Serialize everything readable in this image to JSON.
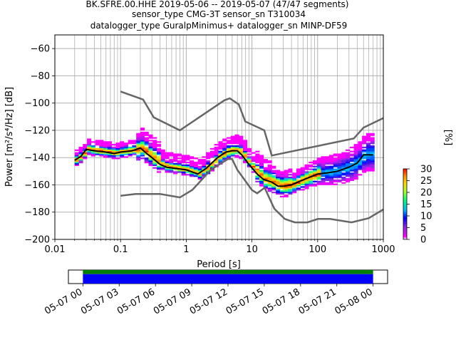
{
  "title": {
    "line1": "BK.SFRE.00.HHE   2019-05-06 -- 2019-05-07  (47/47 segments)",
    "line2": "sensor_type CMG-3T sensor_sn T310034",
    "line3": "datalogger_type GuralpMinimus+ datalogger_sn MINP-DF59"
  },
  "chart_data": [
    {
      "type": "heatmap",
      "description_kind": "probabilistic power spectral density",
      "xlabel": "Period [s]",
      "ylabel": "Power [m²/s⁴/Hz] [dB]",
      "x_scale": "log",
      "xlim": [
        0.01,
        1000
      ],
      "ylim": [
        -200,
        -50
      ],
      "x_ticks": [
        {
          "value": 0.01,
          "label": "0.01"
        },
        {
          "value": 0.1,
          "label": "0.1"
        },
        {
          "value": 1,
          "label": "1"
        },
        {
          "value": 10,
          "label": "10"
        },
        {
          "value": 100,
          "label": "100"
        },
        {
          "value": 1000,
          "label": "1000"
        }
      ],
      "y_ticks": [
        -200,
        -180,
        -160,
        -140,
        -120,
        -100,
        -80,
        -60
      ],
      "grid": true,
      "colorbar": {
        "label": "[%]",
        "min": 0,
        "max": 30,
        "ticks": [
          0,
          5,
          10,
          15,
          20,
          25,
          30
        ]
      },
      "mode_curve": {
        "name": "mode",
        "color": "#000000",
        "x": [
          0.02,
          0.025,
          0.03,
          0.04,
          0.06,
          0.08,
          0.1,
          0.15,
          0.2,
          0.25,
          0.3,
          0.4,
          0.5,
          0.7,
          1.0,
          1.5,
          2,
          3,
          4,
          5,
          6,
          7,
          9,
          12,
          15,
          20,
          25,
          30,
          40,
          50,
          70,
          100,
          150,
          200,
          300,
          400,
          500,
          700
        ],
        "y": [
          -142,
          -139,
          -134,
          -135,
          -136,
          -137,
          -136,
          -135,
          -133,
          -137,
          -140,
          -145,
          -147,
          -148,
          -149,
          -152,
          -148,
          -140,
          -136,
          -135,
          -135,
          -138,
          -145,
          -152,
          -156,
          -158,
          -161,
          -161,
          -160,
          -158,
          -155,
          -152,
          -151,
          -150,
          -147,
          -144,
          -138,
          -138
        ]
      },
      "noise_models": [
        {
          "name": "NHNM",
          "color": "#666666",
          "x": [
            0.1,
            0.22,
            0.32,
            0.8,
            3.8,
            4.6,
            6.3,
            7.9,
            15.4,
            20,
            354.8,
            500,
            1000
          ],
          "y": [
            -91.5,
            -97.4,
            -110.5,
            -120,
            -98,
            -96.5,
            -101,
            -113.5,
            -120,
            -138.5,
            -126,
            -118,
            -111
          ]
        },
        {
          "name": "NLNM",
          "color": "#666666",
          "x": [
            0.1,
            0.17,
            0.4,
            0.8,
            1.24,
            2.4,
            4.3,
            5,
            6,
            10,
            12,
            15.6,
            21.9,
            31.6,
            45,
            70,
            101,
            154,
            328,
            600,
            1000
          ],
          "y": [
            -168,
            -166.7,
            -166.7,
            -169.2,
            -163.7,
            -148.6,
            -141.1,
            -141.1,
            -149,
            -163.8,
            -166.2,
            -162.1,
            -177.5,
            -185,
            -187.5,
            -187.5,
            -185,
            -185,
            -187.5,
            -184.4,
            -178
          ]
        }
      ]
    },
    {
      "type": "bar",
      "description_kind": "data coverage timeline",
      "x_ticks": [
        "05-07 00",
        "05-07 03",
        "05-07 06",
        "05-07 09",
        "05-07 12",
        "05-07 15",
        "05-07 18",
        "05-07 21",
        "05-08 00"
      ],
      "coverage_start_hour": 0,
      "coverage_end_hour": 24,
      "xlim_hours": [
        -1.2,
        25.2
      ],
      "series": [
        {
          "color": "#008000",
          "fraction_of_height": 0.3
        },
        {
          "color": "#0000ff",
          "fraction_of_height": 0.7
        }
      ]
    }
  ]
}
